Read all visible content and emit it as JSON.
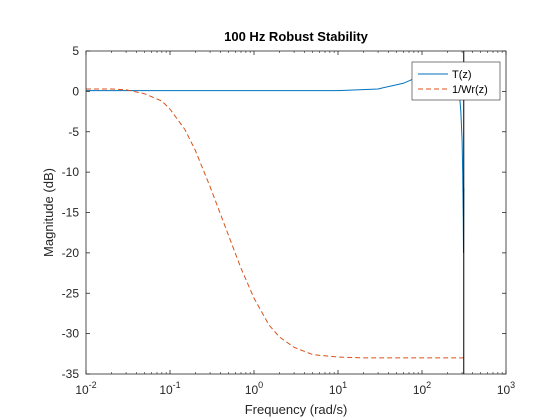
{
  "chart_data": {
    "type": "line",
    "title": "100 Hz Robust Stability",
    "xlabel": "Frequency  (rad/s)",
    "ylabel": "Magnitude (dB)",
    "xscale": "log",
    "xlim": [
      0.01,
      1000
    ],
    "ylim": [
      -35,
      5
    ],
    "xticks": [
      {
        "base": "10",
        "exp": "-2"
      },
      {
        "base": "10",
        "exp": "-1"
      },
      {
        "base": "10",
        "exp": "0"
      },
      {
        "base": "10",
        "exp": "1"
      },
      {
        "base": "10",
        "exp": "2"
      },
      {
        "base": "10",
        "exp": "3"
      }
    ],
    "yticks": [
      "5",
      "0",
      "-5",
      "-10",
      "-15",
      "-20",
      "-25",
      "-30",
      "-35"
    ],
    "grid": false,
    "legend_location": "top-right",
    "vertical_line": {
      "x": 314.16,
      "color": "#000000"
    },
    "series": [
      {
        "name": "T(z)",
        "color": "#0072BD",
        "style": "solid",
        "x": [
          0.01,
          0.1,
          1,
          10,
          30,
          60,
          100,
          150,
          200,
          240,
          270,
          290,
          300,
          305,
          310,
          312,
          313,
          314
        ],
        "y": [
          0.1,
          0.1,
          0.1,
          0.1,
          0.3,
          1.0,
          2.0,
          3.0,
          3.6,
          3.3,
          1.5,
          -2.5,
          -6.0,
          -10.0,
          -16.0,
          -20.0,
          -14.0,
          -12.0
        ]
      },
      {
        "name": "1/Wr(z)",
        "color": "#D95319",
        "style": "dashed",
        "x": [
          0.01,
          0.02,
          0.03,
          0.05,
          0.08,
          0.1,
          0.15,
          0.2,
          0.3,
          0.5,
          0.7,
          1,
          1.5,
          2,
          3,
          5,
          10,
          20,
          50,
          100,
          314
        ],
        "y": [
          0.3,
          0.3,
          0.2,
          -0.3,
          -1.2,
          -2.2,
          -4.7,
          -7.3,
          -11.8,
          -17.9,
          -21.9,
          -25.6,
          -28.9,
          -30.4,
          -31.7,
          -32.6,
          -32.9,
          -33.0,
          -33.0,
          -33.0,
          -33.0
        ]
      }
    ]
  }
}
